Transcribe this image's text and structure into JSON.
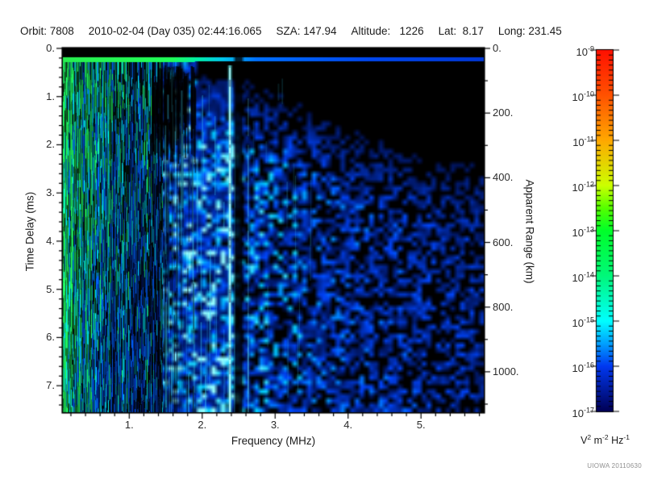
{
  "header": {
    "fields": [
      "Orbit: 7808",
      "2010-02-04 (Day 035) 02:44:16.065",
      "SZA: 147.94",
      "Altitude:   1226",
      "Lat:  8.17",
      "Long: 231.45"
    ]
  },
  "watermark": "UIOWA 20110630",
  "chart_data": {
    "type": "heatmap",
    "subtype": "radar-sounder-ionogram-spectrogram",
    "title": "",
    "xlabel": "Frequency (MHz)",
    "ylabel_left": "Time Delay (ms)",
    "ylabel_right": "Apparent Range (km)",
    "x_range_mhz": [
      0.09,
      5.86
    ],
    "x_ticks": {
      "values": [
        1,
        2,
        3,
        4,
        5
      ],
      "labels": [
        "1.",
        "2.",
        "3.",
        "4.",
        "5."
      ],
      "minor_step": 0.2
    },
    "y_left_range_ms": [
      0,
      7.55
    ],
    "y_left_ticks": {
      "values": [
        0,
        1,
        2,
        3,
        4,
        5,
        6,
        7
      ],
      "labels": [
        "0.",
        "1.",
        "2.",
        "3.",
        "4.",
        "5.",
        "6.",
        "7."
      ],
      "minor_step": 0.2
    },
    "y_right_range_km": [
      0,
      1125
    ],
    "y_right_ticks": {
      "values": [
        0,
        200,
        400,
        600,
        800,
        1000
      ],
      "labels": [
        "0.",
        "200.",
        "400.",
        "600.",
        "800.",
        "1000."
      ],
      "minor_step": 100
    },
    "colorbar": {
      "scale": "log",
      "mantissa": "10",
      "exponents": [
        -9,
        -10,
        -11,
        -12,
        -13,
        -14,
        -15,
        -16,
        -17
      ],
      "unit_parts": [
        [
          "V",
          "2"
        ],
        [
          "m",
          "-2"
        ],
        [
          "Hz",
          "-1"
        ]
      ],
      "stops": [
        [
          0.0,
          "#ff1000"
        ],
        [
          0.125,
          "#ff5200"
        ],
        [
          0.25,
          "#ffa800"
        ],
        [
          0.375,
          "#ccff00"
        ],
        [
          0.4375,
          "#55ff00"
        ],
        [
          0.5,
          "#00ff2a"
        ],
        [
          0.625,
          "#00f87a"
        ],
        [
          0.75,
          "#00ffff"
        ],
        [
          0.8125,
          "#00a0ff"
        ],
        [
          0.875,
          "#0038f0"
        ],
        [
          1.0,
          "#000055"
        ]
      ]
    },
    "features": [
      {
        "region": "top-band",
        "freq_mhz": [
          0.09,
          5.86
        ],
        "delay_ms": [
          0,
          0.2
        ],
        "appearance": "solid black band"
      },
      {
        "region": "surface-echo-line",
        "delay_ms": 0.27,
        "appearance": "bright horizontal echo line: green below ~1.7 MHz, cyan to ~2.4 MHz, blue beyond"
      },
      {
        "region": "low-freq-striations",
        "freq_mhz": [
          0.09,
          1.45
        ],
        "appearance": "dense bright green/cyan vertical striations over full delay range"
      },
      {
        "region": "dark-wedge",
        "freq_mhz": [
          1.3,
          1.9
        ],
        "delay_ms": [
          0.35,
          2.4
        ],
        "appearance": "mostly black with sparse cyan streaks"
      },
      {
        "region": "bright-artifact-line",
        "freq_mhz": 2.38,
        "appearance": "narrow bright cyan vertical line over full depth"
      },
      {
        "region": "dark-artifact-band",
        "freq_mhz": [
          2.45,
          2.55
        ],
        "appearance": "black vertical band over full depth"
      },
      {
        "region": "faint-artifact-line",
        "freq_mhz": 2.63,
        "appearance": "faint broken cyan vertical line"
      },
      {
        "region": "diffuse-scatter",
        "freq_mhz": [
          1.9,
          5.86
        ],
        "appearance": "mottled dark-blue speckle on black, fading with frequency; black above ~1.5 ms beyond ~3.5 MHz"
      }
    ],
    "texture": {
      "seed": 20110630,
      "stripe_end_mhz": 1.45,
      "stripe_fade_mhz": 1.85,
      "black_top_ms": 0.2,
      "echo_line_ms": 0.27,
      "bright_line_mhz": 2.38,
      "dark_band_mhz": [
        2.45,
        2.55
      ],
      "faint_line_mhz": 2.63,
      "wedge_mhz": [
        1.3,
        1.9
      ],
      "wedge_ms": [
        0.35,
        2.4
      ]
    }
  }
}
